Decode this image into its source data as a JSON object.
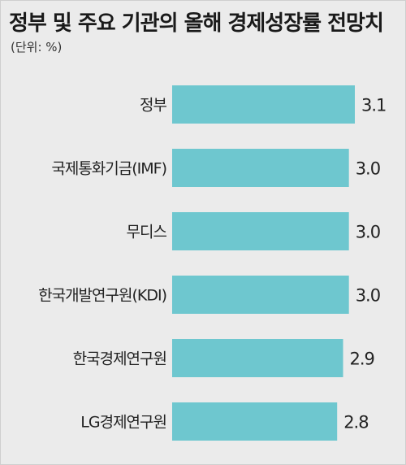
{
  "title": "정부 및 주요 기관의 올해 경제성장률 전망치",
  "unit": "(단위: %)",
  "colors": {
    "bar": "#6ec7cf",
    "background": "#ebebeb",
    "text": "#222222"
  },
  "chart_data": {
    "type": "bar",
    "orientation": "horizontal",
    "title": "정부 및 주요 기관의 올해 경제성장률 전망치",
    "unit": "(단위: %)",
    "categories": [
      "정부",
      "국제통화기금(IMF)",
      "무디스",
      "한국개발연구원(KDI)",
      "한국경제연구원",
      "LG경제연구원"
    ],
    "values": [
      3.1,
      3.0,
      3.0,
      3.0,
      2.9,
      2.8
    ],
    "value_labels": [
      "3.1",
      "3.0",
      "3.0",
      "3.0",
      "2.9",
      "2.8"
    ],
    "grid": false,
    "legend": false
  }
}
